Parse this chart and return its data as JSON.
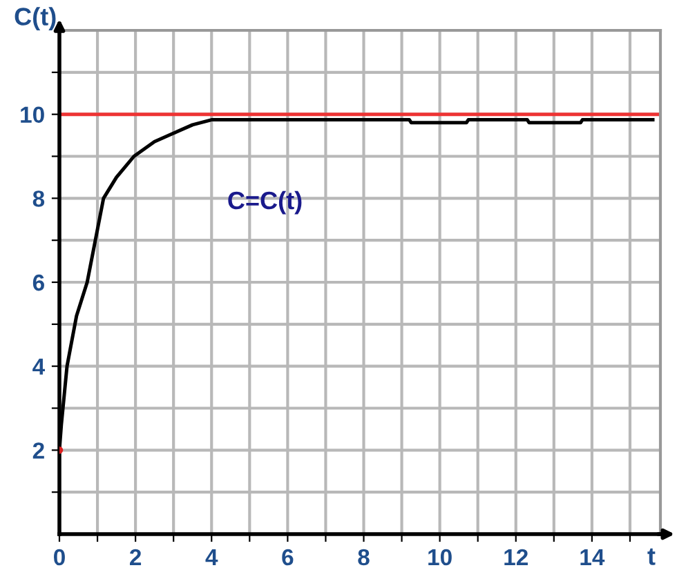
{
  "chart_data": {
    "type": "line",
    "xlabel": "t",
    "ylabel": "C(t)",
    "xlim": [
      0,
      15.8
    ],
    "ylim": [
      0,
      12
    ],
    "xticks": [
      0,
      {
        "value": 1,
        "label": null
      },
      2,
      {
        "value": 3,
        "label": null
      },
      4,
      {
        "value": 5,
        "label": null
      },
      6,
      {
        "value": 7,
        "label": null
      },
      8,
      {
        "value": 9,
        "label": null
      },
      10,
      {
        "value": 11,
        "label": null
      },
      12,
      {
        "value": 13,
        "label": null
      },
      14,
      {
        "value": 15,
        "label": null
      }
    ],
    "yticks": [
      {
        "value": 1,
        "label": null
      },
      2,
      {
        "value": 3,
        "label": null
      },
      4,
      {
        "value": 5,
        "label": null
      },
      6,
      {
        "value": 7,
        "label": null
      },
      8,
      {
        "value": 9,
        "label": null
      },
      10,
      {
        "value": 11,
        "label": null
      }
    ],
    "grid": true,
    "marker": "none",
    "line_style": "solid",
    "series": [
      {
        "color": "#000000",
        "x": [
          0,
          0.05,
          0.2,
          0.45,
          0.73,
          1.16,
          1.5,
          1.96,
          2.5,
          3,
          3.5,
          4,
          4.2,
          9.2,
          9.25,
          10.7,
          10.75,
          12.3,
          12.35,
          13.7,
          13.75,
          15.6
        ],
        "values": [
          2,
          2.6,
          4,
          5.2,
          6,
          8,
          8.5,
          9,
          9.35,
          9.55,
          9.75,
          9.87,
          9.87,
          9.87,
          9.8,
          9.8,
          9.87,
          9.87,
          9.8,
          9.8,
          9.87,
          9.87
        ]
      },
      {
        "type": "scatter",
        "marker": "circle",
        "color": "#dd2020",
        "x": [
          0
        ],
        "values": [
          2
        ]
      }
    ],
    "ref_lines": [
      {
        "axis": "y",
        "value": 10,
        "color": "#ee3333",
        "line_style": "solid"
      }
    ],
    "annotations": [
      "C=C(t)"
    ]
  }
}
